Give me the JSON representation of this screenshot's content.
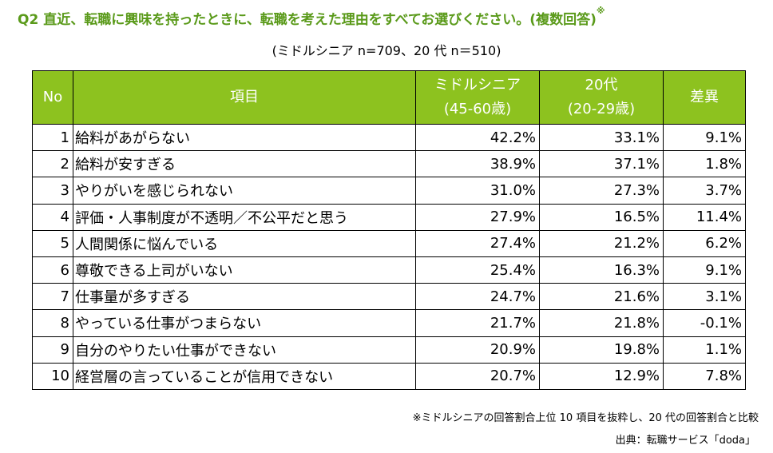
{
  "question": {
    "text": "Q2 直近、転職に興味を持ったときに、転職を考えた理由をすべてお選びください。(複数回答)",
    "mark": "※"
  },
  "subtitle": "(ミドルシニア n=709、20 代 n＝510)",
  "table": {
    "headers": {
      "no": "No",
      "item": "項目",
      "middle_line1": "ミドルシニア",
      "middle_line2": "(45-60歳)",
      "young_line1": "20代",
      "young_line2": "(20-29歳)",
      "diff": "差異"
    },
    "rows": [
      {
        "no": "1",
        "item": "給料があがらない",
        "middle": "42.2%",
        "young": "33.1%",
        "diff": "9.1%"
      },
      {
        "no": "2",
        "item": "給料が安すぎる",
        "middle": "38.9%",
        "young": "37.1%",
        "diff": "1.8%"
      },
      {
        "no": "3",
        "item": "やりがいを感じられない",
        "middle": "31.0%",
        "young": "27.3%",
        "diff": "3.7%"
      },
      {
        "no": "4",
        "item": "評価・人事制度が不透明／不公平だと思う",
        "middle": "27.9%",
        "young": "16.5%",
        "diff": "11.4%"
      },
      {
        "no": "5",
        "item": "人間関係に悩んでいる",
        "middle": "27.4%",
        "young": "21.2%",
        "diff": "6.2%"
      },
      {
        "no": "6",
        "item": "尊敬できる上司がいない",
        "middle": "25.4%",
        "young": "16.3%",
        "diff": "9.1%"
      },
      {
        "no": "7",
        "item": "仕事量が多すぎる",
        "middle": "24.7%",
        "young": "21.6%",
        "diff": "3.1%"
      },
      {
        "no": "8",
        "item": "やっている仕事がつまらない",
        "middle": "21.7%",
        "young": "21.8%",
        "diff": "-0.1%"
      },
      {
        "no": "9",
        "item": "自分のやりたい仕事ができない",
        "middle": "20.9%",
        "young": "19.8%",
        "diff": "1.1%"
      },
      {
        "no": "10",
        "item": "経営層の言っていることが信用できない",
        "middle": "20.7%",
        "young": "12.9%",
        "diff": "7.8%"
      }
    ]
  },
  "footnote": "※ミドルシニアの回答割合上位 10 項目を抜粋し、20 代の回答割合と比較",
  "source": "出典：転職サービス「doda」",
  "colors": {
    "header_bg": "#8dc21f",
    "question_text": "#5a9a1a"
  }
}
